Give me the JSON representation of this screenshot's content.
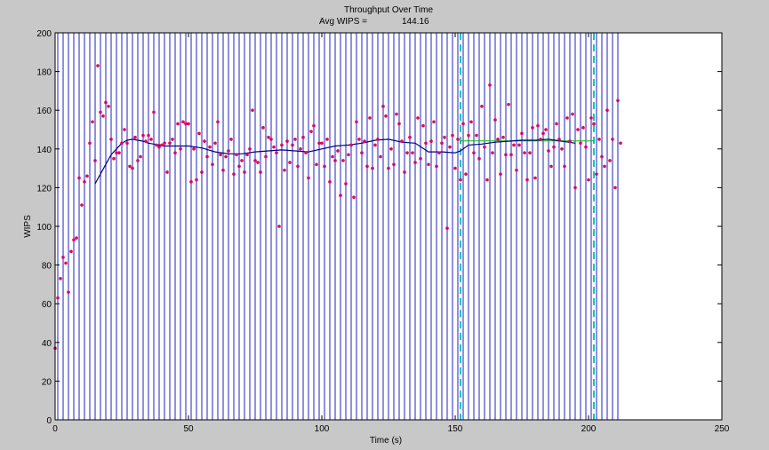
{
  "chart_data": {
    "type": "scatter",
    "title": "Throughput Over Time",
    "subtitle_label": "Avg WIPS =",
    "subtitle_value": "144.16",
    "xlabel": "Time (s)",
    "ylabel": "WIPS",
    "xlim": [
      0,
      250
    ],
    "ylim": [
      0,
      200
    ],
    "xticks": [
      0,
      50,
      100,
      150,
      200,
      250
    ],
    "yticks": [
      0,
      20,
      40,
      60,
      80,
      100,
      120,
      140,
      160,
      180,
      200
    ],
    "grid": false,
    "colors": {
      "points": "#e0005a",
      "moving_average": "#000080",
      "vertical_lines": "#2020c0",
      "measurement_markers": "#00c8c8",
      "steady_state_average": "#00c000",
      "axes_background": "#ffffff",
      "figure_background": "#c8c8c8"
    },
    "vertical_lines_x": [
      1,
      3,
      5,
      7,
      9,
      11,
      13,
      15,
      17,
      19,
      21,
      23,
      25,
      27,
      29,
      31,
      33,
      35,
      37,
      39,
      41,
      43,
      45,
      47,
      49,
      51,
      53,
      55,
      57,
      59,
      61,
      63,
      65,
      67,
      69,
      71,
      73,
      75,
      77,
      79,
      81,
      83,
      85,
      87,
      89,
      91,
      93,
      95,
      97,
      99,
      101,
      103,
      105,
      107,
      109,
      111,
      113,
      115,
      117,
      119,
      121,
      123,
      125,
      127,
      129,
      131,
      133,
      135,
      137,
      139,
      141,
      143,
      145,
      147,
      149,
      151,
      153,
      155,
      157,
      159,
      161,
      163,
      165,
      167,
      169,
      171,
      173,
      175,
      177,
      179,
      181,
      183,
      185,
      187,
      189,
      191,
      193,
      195,
      197,
      199,
      201,
      203,
      205,
      207,
      209,
      211
    ],
    "measurement_window": [
      152,
      202
    ],
    "steady_state_average": 144.16,
    "series": [
      {
        "name": "",
        "kind": "points",
        "x": [
          0,
          1,
          2,
          3,
          4,
          5,
          6,
          7,
          8,
          9,
          10,
          11,
          12,
          13,
          14,
          15,
          16,
          17,
          18,
          19,
          20,
          21,
          22,
          23,
          24,
          25,
          26,
          27,
          28,
          29,
          30,
          31,
          32,
          33,
          34,
          35,
          36,
          37,
          38,
          39,
          40,
          41,
          42,
          43,
          44,
          45,
          46,
          47,
          48,
          49,
          50,
          51,
          52,
          53,
          54,
          55,
          56,
          57,
          58,
          59,
          60,
          61,
          62,
          63,
          64,
          65,
          66,
          67,
          68,
          69,
          70,
          71,
          72,
          73,
          74,
          75,
          76,
          77,
          78,
          79,
          80,
          81,
          82,
          83,
          84,
          85,
          86,
          87,
          88,
          89,
          90,
          91,
          92,
          93,
          94,
          95,
          96,
          97,
          98,
          99,
          100,
          101,
          102,
          103,
          104,
          105,
          106,
          107,
          108,
          109,
          110,
          111,
          112,
          113,
          114,
          115,
          116,
          117,
          118,
          119,
          120,
          121,
          122,
          123,
          124,
          125,
          126,
          127,
          128,
          129,
          130,
          131,
          132,
          133,
          134,
          135,
          136,
          137,
          138,
          139,
          140,
          141,
          142,
          143,
          144,
          145,
          146,
          147,
          148,
          149,
          150,
          151,
          152,
          153,
          154,
          155,
          156,
          157,
          158,
          159,
          160,
          161,
          162,
          163,
          164,
          165,
          166,
          167,
          168,
          169,
          170,
          171,
          172,
          173,
          174,
          175,
          176,
          177,
          178,
          179,
          180,
          181,
          182,
          183,
          184,
          185,
          186,
          187,
          188,
          189,
          190,
          191,
          192,
          193,
          194,
          195,
          196,
          197,
          198,
          199,
          200,
          201,
          202,
          203,
          204,
          205,
          206,
          207,
          208,
          209,
          210,
          211,
          212
        ],
        "y": [
          37,
          63,
          73,
          84,
          81,
          66,
          87,
          93,
          94,
          125,
          111,
          123,
          126,
          143,
          154,
          134,
          183,
          159,
          157,
          164,
          162,
          145,
          135,
          138,
          138,
          143,
          150,
          143,
          131,
          130,
          146,
          134,
          136,
          147,
          144,
          147,
          145,
          159,
          142,
          141,
          142,
          143,
          128,
          143,
          145,
          138,
          153,
          140,
          154,
          153,
          153,
          123,
          140,
          124,
          148,
          128,
          144,
          136,
          141,
          132,
          143,
          154,
          137,
          129,
          136,
          139,
          145,
          127,
          137,
          131,
          134,
          128,
          137,
          140,
          160,
          134,
          133,
          128,
          151,
          136,
          146,
          145,
          141,
          138,
          100,
          142,
          129,
          144,
          133,
          142,
          145,
          131,
          140,
          146,
          138,
          125,
          149,
          152,
          132,
          143,
          143,
          131,
          145,
          123,
          136,
          134,
          139,
          116,
          134,
          122,
          137,
          142,
          115,
          154,
          145,
          138,
          144,
          131,
          156,
          130,
          142,
          145,
          136,
          162,
          157,
          130,
          140,
          132,
          158,
          153,
          144,
          128,
          138,
          146,
          138,
          133,
          156,
          135,
          152,
          143,
          132,
          144,
          154,
          131,
          138,
          143,
          146,
          99,
          141,
          147,
          130,
          145,
          124,
          153,
          127,
          147,
          154,
          138,
          147,
          135,
          162,
          141,
          124,
          173,
          138,
          155,
          145,
          127,
          146,
          137,
          163,
          137,
          142,
          129,
          142,
          148,
          138,
          124,
          138,
          151,
          125,
          152,
          145,
          148,
          150,
          139,
          131,
          141,
          153,
          145,
          140,
          131,
          156,
          144,
          158,
          120,
          150,
          143,
          151,
          141,
          124,
          156,
          153,
          127,
          145,
          136,
          131,
          160,
          134,
          145,
          120,
          165,
          143
        ]
      },
      {
        "name": "",
        "kind": "moving_average",
        "x": [
          15,
          17,
          19,
          21,
          23,
          25,
          27,
          29,
          31,
          33,
          35,
          37,
          39,
          41,
          43,
          45,
          50,
          55,
          60,
          65,
          70,
          75,
          80,
          85,
          90,
          95,
          100,
          105,
          110,
          115,
          120,
          125,
          130,
          135,
          140,
          145,
          150,
          152,
          155,
          160,
          165,
          170,
          175,
          180,
          185,
          190,
          195
        ],
        "y": [
          122,
          127,
          132,
          137,
          140,
          143,
          144.5,
          145,
          144.5,
          144,
          143,
          142.5,
          142,
          141.5,
          141.5,
          141.5,
          141.5,
          140.5,
          138.5,
          137.5,
          137.5,
          138.5,
          139,
          139.5,
          139,
          138.5,
          140,
          141.5,
          142,
          143,
          144.5,
          145,
          143.5,
          143,
          138.5,
          138.5,
          138,
          139,
          142,
          142.5,
          143.5,
          144,
          144.5,
          144.5,
          145,
          144,
          143
        ]
      }
    ]
  }
}
